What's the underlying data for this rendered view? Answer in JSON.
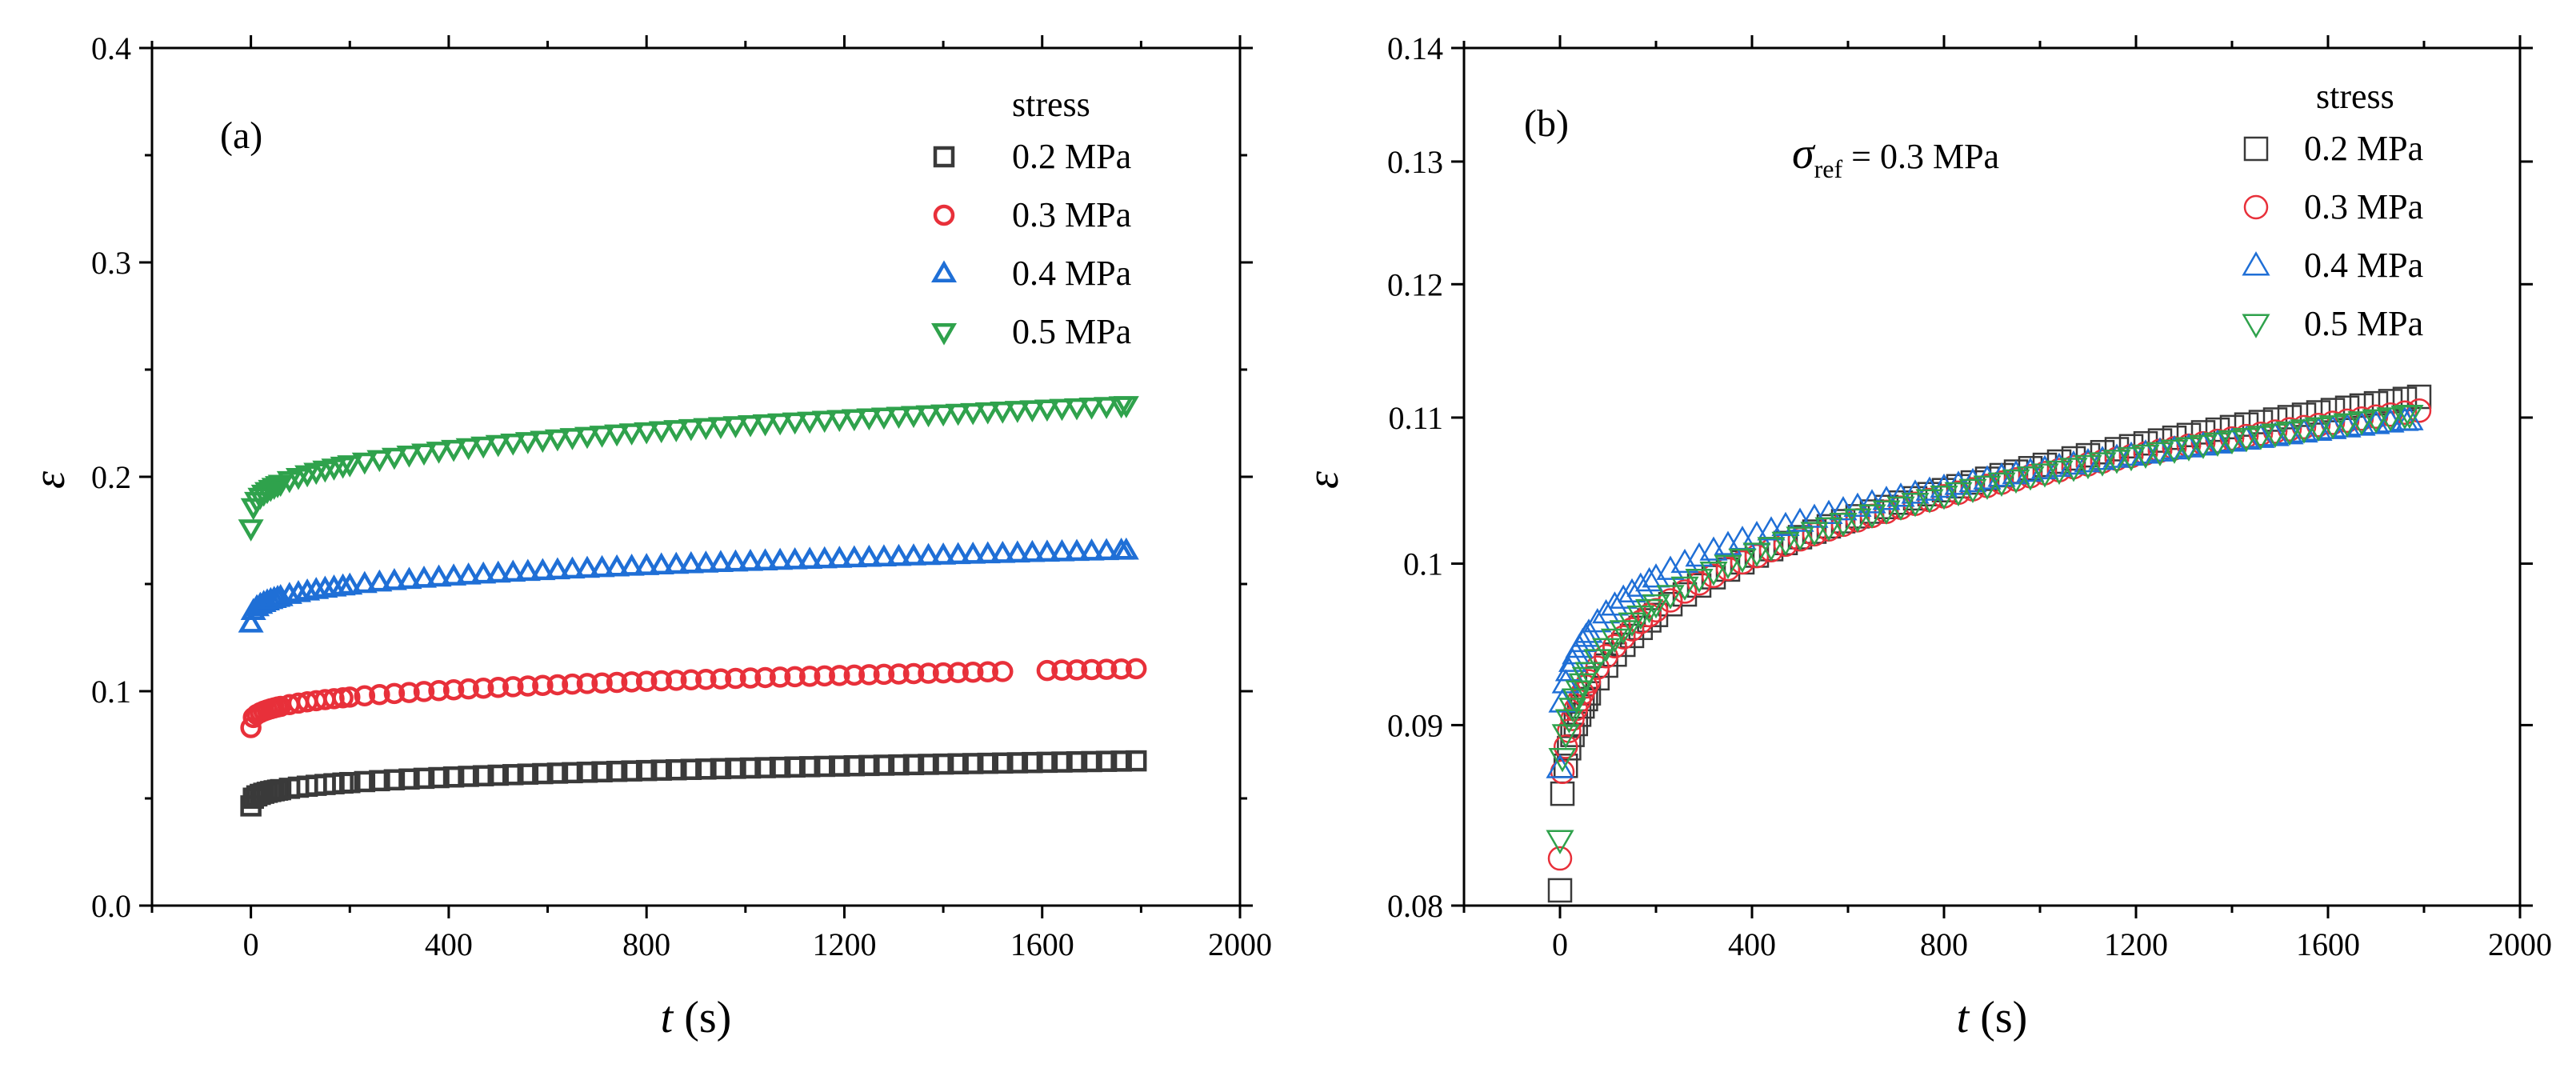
{
  "chart_data": [
    {
      "type": "scatter",
      "panel_label": "(a)",
      "xlabel_var": "t",
      "xlabel_unit": " (s)",
      "ylabel": "ε",
      "xlim": [
        -200,
        2000
      ],
      "ylim": [
        0.0,
        0.4
      ],
      "x_ticks": [
        0,
        400,
        800,
        1200,
        1600,
        2000
      ],
      "x_tick_labels": [
        "0",
        "400",
        "800",
        "1200",
        "1600",
        "2000"
      ],
      "y_ticks": [
        0.0,
        0.1,
        0.2,
        0.3,
        0.4
      ],
      "y_tick_labels": [
        "0.0",
        "0.1",
        "0.2",
        "0.3",
        "0.4"
      ],
      "legend_title": "stress",
      "legend_position": "top-right",
      "series": [
        {
          "name": "0.2 MPa",
          "marker": "square",
          "color": "#3a3a3a",
          "eps0": 0.0465,
          "epsEnd": 0.0675,
          "tEnd": 1790,
          "gapStart": null,
          "gapEnd": null
        },
        {
          "name": "0.3 MPa",
          "marker": "circle",
          "color": "#e8303a",
          "eps0": 0.083,
          "epsEnd": 0.1105,
          "tEnd": 1790,
          "gapStart": 1530,
          "gapEnd": 1590
        },
        {
          "name": "0.4 MPa",
          "marker": "triangle-up",
          "color": "#1f6fd6",
          "eps0": 0.1315,
          "epsEnd": 0.1655,
          "tEnd": 1770,
          "gapStart": null,
          "gapEnd": null
        },
        {
          "name": "0.5 MPa",
          "marker": "triangle-down",
          "color": "#2fa24c",
          "eps0": 0.176,
          "epsEnd": 0.2335,
          "tEnd": 1770,
          "gapStart": null,
          "gapEnd": null
        }
      ]
    },
    {
      "type": "scatter",
      "panel_label": "(b)",
      "annotation_sigma": "σ",
      "annotation_sub": "ref",
      "annotation_rest": " = 0.3 MPa",
      "xlabel_var": "t",
      "xlabel_unit": " (s)",
      "ylabel": "ε",
      "xlim": [
        -200,
        2000
      ],
      "ylim": [
        0.08,
        0.14
      ],
      "y_scale": "log",
      "x_ticks": [
        0,
        400,
        800,
        1200,
        1600,
        2000
      ],
      "x_tick_labels": [
        "0",
        "400",
        "800",
        "1200",
        "1600",
        "2000"
      ],
      "y_ticks": [
        0.08,
        0.09,
        0.1,
        0.11,
        0.12,
        0.13,
        0.14
      ],
      "y_tick_labels": [
        "0.08",
        "0.09",
        "0.1",
        "0.11",
        "0.12",
        "0.13",
        "0.14"
      ],
      "legend_title": "stress",
      "legend_position": "top-right",
      "series": [
        {
          "name": "0.2 MPa",
          "marker": "square",
          "color": "#3a3a3a",
          "eps0": 0.0808,
          "epsEnd": 0.1115,
          "tEnd": 1790
        },
        {
          "name": "0.3 MPa",
          "marker": "circle",
          "color": "#e8303a",
          "eps0": 0.0825,
          "epsEnd": 0.1105,
          "tEnd": 1790
        },
        {
          "name": "0.4 MPa",
          "marker": "triangle-up",
          "color": "#1f6fd6",
          "eps0": 0.0875,
          "epsEnd": 0.1098,
          "tEnd": 1770
        },
        {
          "name": "0.5 MPa",
          "marker": "triangle-down",
          "color": "#2fa24c",
          "eps0": 0.0835,
          "epsEnd": 0.1102,
          "tEnd": 1770
        }
      ]
    }
  ]
}
